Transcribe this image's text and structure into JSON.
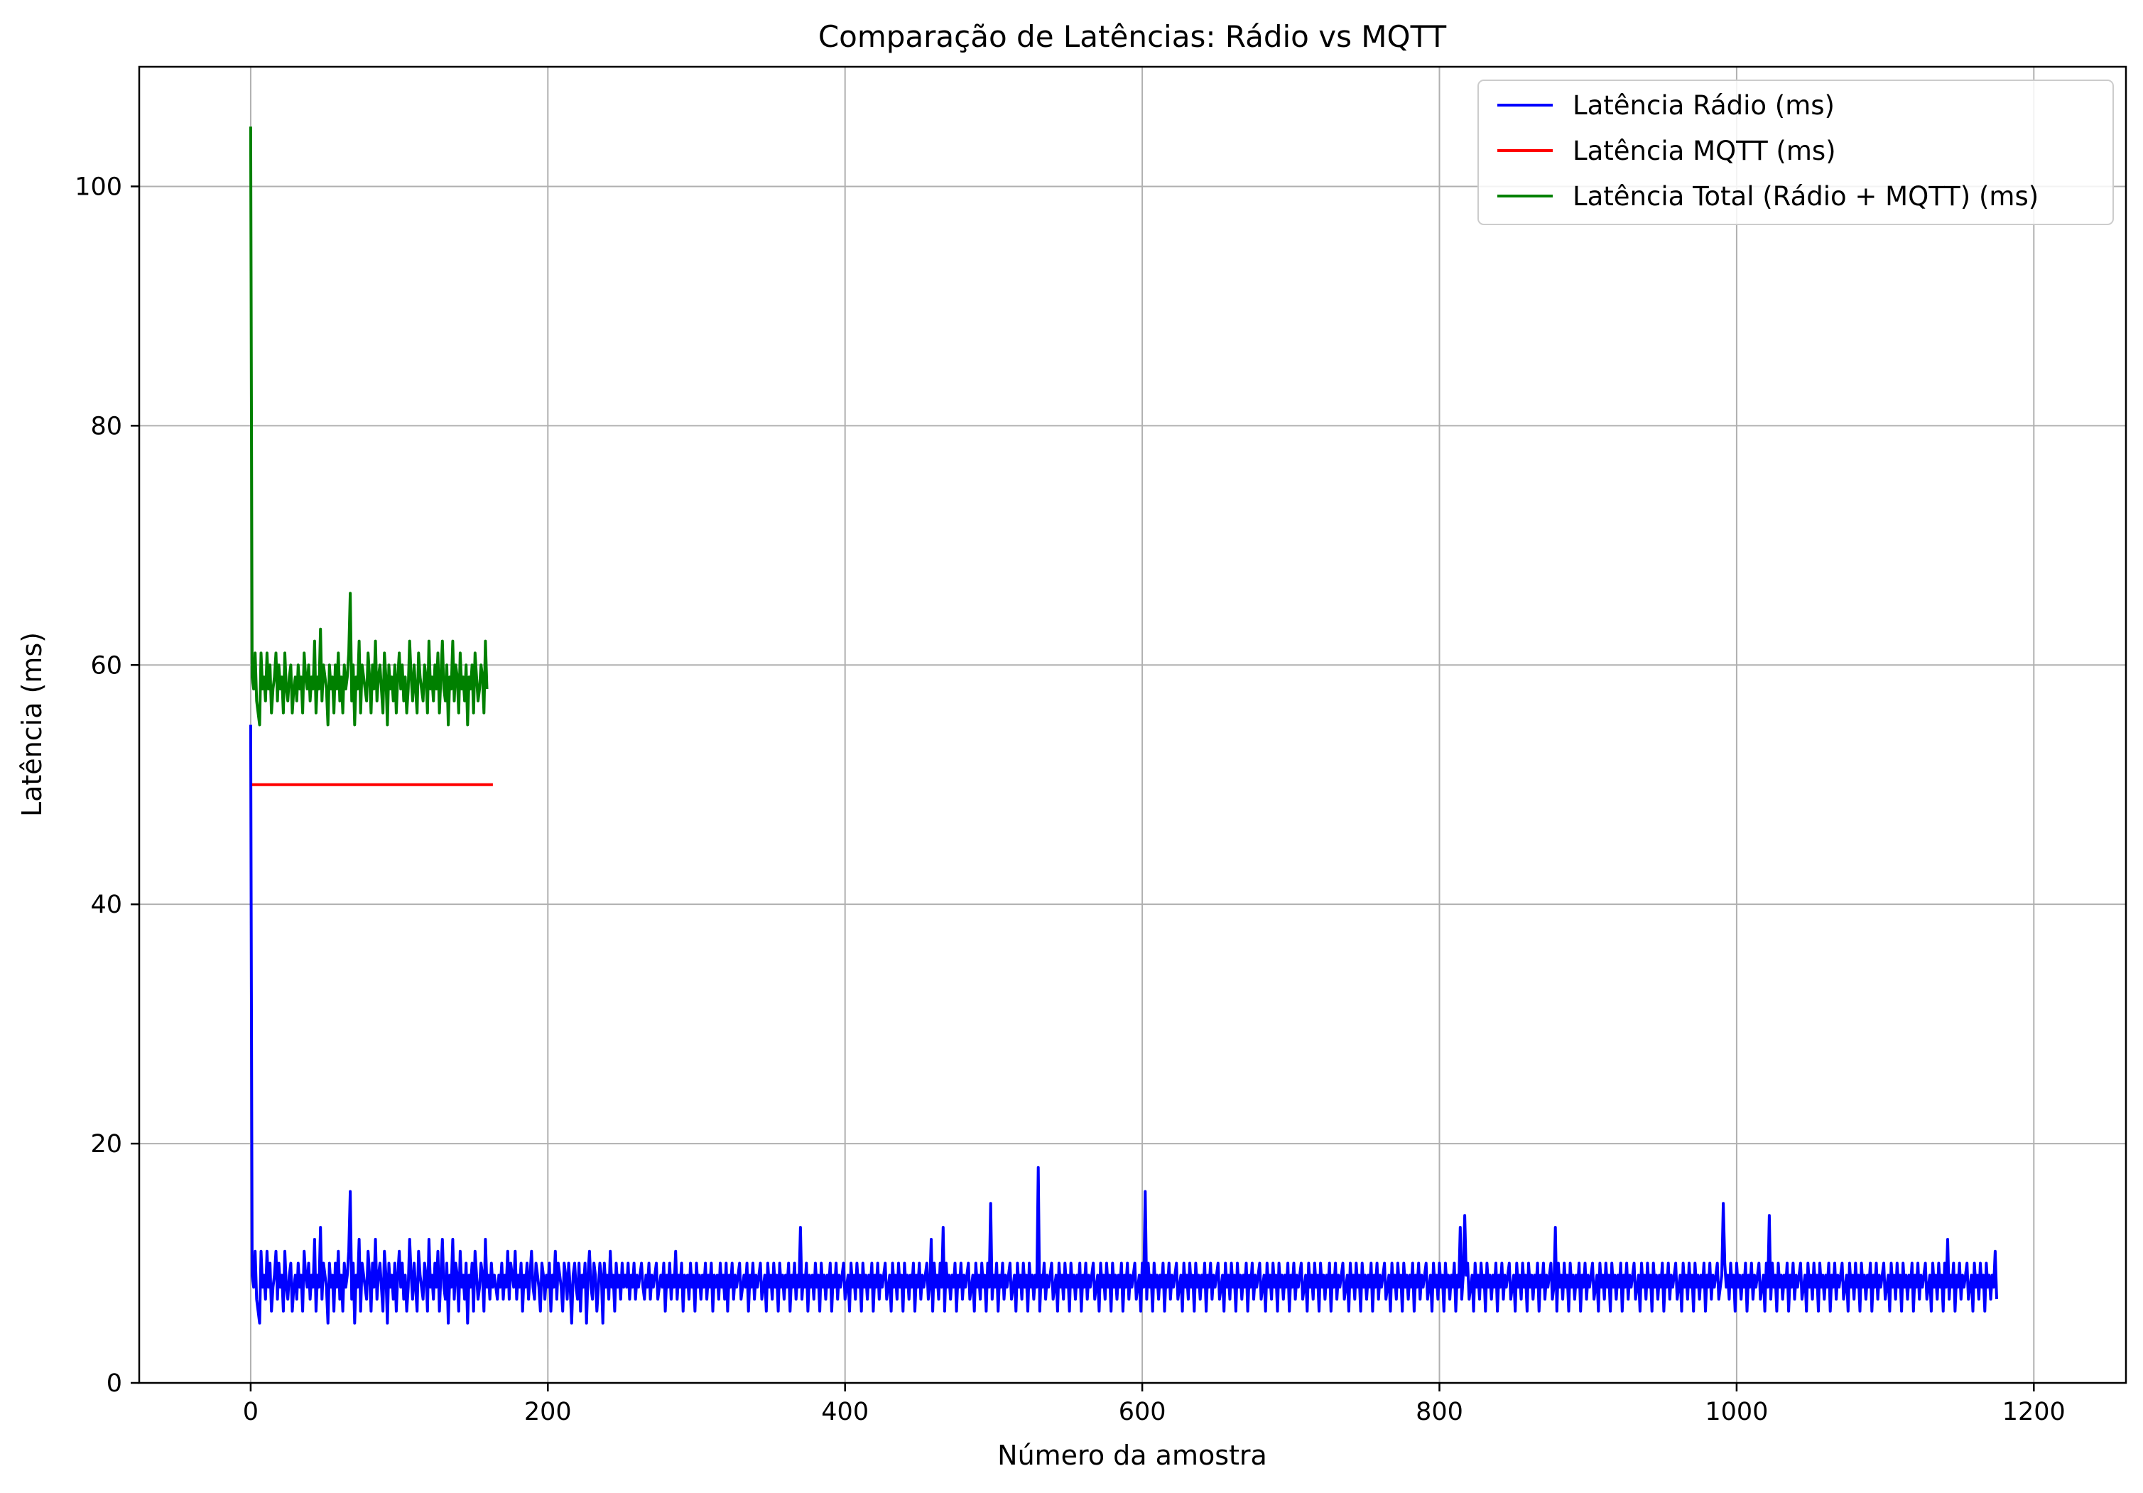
{
  "chart_data": {
    "type": "line",
    "title": "Comparação de Latências: Rádio vs MQTT",
    "xlabel": "Número da amostra",
    "ylabel": "Latência (ms)",
    "xlim": [
      -75,
      1262
    ],
    "ylim": [
      0,
      110
    ],
    "xticks": [
      0,
      200,
      400,
      600,
      800,
      1000,
      1200
    ],
    "yticks": [
      0,
      20,
      40,
      60,
      80,
      100
    ],
    "grid": true,
    "legend_position": "top-right",
    "series": [
      {
        "name": "Latência Rádio (ms)",
        "color": "#0000ff",
        "x_start": 0,
        "values": [
          55,
          9,
          8,
          11,
          7,
          6,
          5,
          11,
          8,
          9,
          7,
          11,
          8,
          10,
          6,
          8,
          9,
          11,
          7,
          10,
          8,
          9,
          6,
          11,
          8,
          7,
          9,
          10,
          6,
          8,
          9,
          7,
          10,
          8,
          9,
          6,
          11,
          9,
          8,
          10,
          7,
          9,
          8,
          12,
          6,
          9,
          8,
          13,
          7,
          10,
          9,
          8,
          5,
          10,
          8,
          9,
          6,
          10,
          8,
          11,
          7,
          9,
          6,
          10,
          8,
          9,
          11,
          16,
          7,
          10,
          5,
          9,
          8,
          12,
          6,
          10,
          9,
          8,
          7,
          11,
          9,
          6,
          10,
          8,
          12,
          7,
          9,
          10,
          8,
          6,
          11,
          9,
          5,
          10,
          8,
          9,
          7,
          10,
          6,
          9,
          11,
          8,
          10,
          7,
          9,
          6,
          8,
          12,
          9,
          7,
          10,
          8,
          6,
          11,
          9,
          8,
          7,
          10,
          9,
          6,
          12,
          8,
          9,
          7,
          10,
          8,
          11,
          6,
          9,
          12,
          8,
          7,
          10,
          5,
          9,
          8,
          12,
          7,
          10,
          9,
          6,
          11,
          8,
          9,
          7,
          10,
          5,
          9,
          8,
          10,
          6,
          11,
          9,
          7,
          8,
          10,
          9,
          6,
          12,
          8,
          9,
          7,
          10,
          8,
          9,
          8,
          7,
          9,
          8,
          10,
          7,
          9,
          8,
          11,
          7,
          10,
          9,
          8,
          11,
          7,
          9,
          8,
          10,
          6,
          9,
          8,
          10,
          7,
          9,
          11,
          8,
          7,
          10,
          9,
          8,
          6,
          10,
          9,
          7,
          9,
          8,
          10,
          6,
          9,
          8,
          11,
          7,
          10,
          9,
          8,
          6,
          10,
          9,
          7,
          10,
          8,
          5,
          9,
          10,
          8,
          7,
          10,
          6,
          9,
          8,
          10,
          5,
          9,
          11,
          8,
          7,
          10,
          9,
          6,
          8,
          10,
          9,
          5,
          10,
          8,
          9,
          7,
          11,
          8,
          9,
          6,
          10,
          8,
          9,
          7,
          10,
          8,
          9,
          8,
          10,
          7,
          9,
          8,
          10,
          7,
          9,
          8,
          9,
          10,
          8,
          7,
          9,
          8,
          10,
          7,
          9,
          8,
          9,
          10,
          7,
          8,
          9,
          8,
          10,
          6,
          9,
          8,
          10,
          7,
          9,
          8,
          11,
          7,
          9,
          8,
          10,
          6,
          9,
          8,
          9,
          7,
          10,
          8,
          9,
          6,
          10,
          8,
          9,
          7,
          9,
          8,
          10,
          7,
          9,
          8,
          10,
          6,
          9,
          8,
          9,
          7,
          10,
          8,
          9,
          7,
          10,
          6,
          9,
          8,
          10,
          7,
          9,
          8,
          9,
          10,
          7,
          8,
          9,
          8,
          10,
          6,
          9,
          8,
          10,
          7,
          9,
          8,
          9,
          10,
          7,
          8,
          9,
          6,
          10,
          8,
          9,
          7,
          10,
          8,
          9,
          6,
          10,
          8,
          9,
          7,
          9,
          8,
          10,
          6,
          9,
          8,
          10,
          7,
          9,
          8,
          13,
          7,
          9,
          8,
          10,
          6,
          9,
          8,
          9,
          7,
          10,
          8,
          9,
          6,
          10,
          8,
          9,
          7,
          9,
          8,
          10,
          6,
          9,
          8,
          10,
          7,
          9,
          8,
          9,
          10,
          7,
          8,
          9,
          6,
          10,
          8,
          9,
          7,
          10,
          8,
          9,
          6,
          10,
          8,
          9,
          7,
          9,
          8,
          10,
          6,
          9,
          8,
          10,
          7,
          9,
          8,
          9,
          10,
          7,
          8,
          9,
          6,
          10,
          8,
          9,
          7,
          10,
          8,
          9,
          6,
          10,
          8,
          9,
          7,
          9,
          8,
          10,
          6,
          9,
          8,
          10,
          7,
          9,
          8,
          9,
          10,
          7,
          8,
          12,
          6,
          10,
          8,
          9,
          7,
          10,
          8,
          13,
          6,
          10,
          8,
          9,
          7,
          9,
          8,
          10,
          6,
          9,
          8,
          10,
          7,
          9,
          8,
          9,
          10,
          7,
          8,
          9,
          6,
          10,
          8,
          9,
          7,
          10,
          8,
          9,
          6,
          10,
          8,
          15,
          7,
          9,
          8,
          10,
          6,
          9,
          8,
          10,
          7,
          9,
          8,
          9,
          10,
          7,
          8,
          9,
          6,
          10,
          8,
          9,
          7,
          10,
          8,
          9,
          6,
          10,
          8,
          9,
          7,
          9,
          8,
          18,
          6,
          9,
          8,
          10,
          7,
          9,
          8,
          9,
          10,
          7,
          8,
          9,
          6,
          10,
          8,
          9,
          7,
          10,
          8,
          9,
          6,
          10,
          8,
          9,
          7,
          9,
          8,
          10,
          6,
          9,
          8,
          10,
          7,
          9,
          8,
          9,
          10,
          7,
          8,
          9,
          6,
          10,
          8,
          9,
          7,
          10,
          8,
          9,
          6,
          10,
          8,
          9,
          7,
          9,
          8,
          10,
          6,
          9,
          8,
          10,
          7,
          9,
          8,
          9,
          10,
          7,
          8,
          9,
          6,
          10,
          8,
          16,
          7,
          10,
          8,
          9,
          6,
          10,
          8,
          9,
          7,
          9,
          8,
          10,
          6,
          9,
          8,
          10,
          7,
          9,
          8,
          9,
          10,
          7,
          8,
          9,
          6,
          10,
          8,
          9,
          7,
          10,
          8,
          9,
          6,
          10,
          8,
          9,
          7,
          9,
          8,
          10,
          6,
          9,
          8,
          10,
          7,
          9,
          8,
          9,
          10,
          7,
          8,
          9,
          6,
          10,
          8,
          9,
          7,
          10,
          8,
          9,
          6,
          10,
          8,
          9,
          7,
          9,
          8,
          10,
          6,
          9,
          8,
          10,
          7,
          9,
          8,
          9,
          10,
          7,
          8,
          9,
          6,
          10,
          8,
          9,
          7,
          10,
          8,
          9,
          6,
          10,
          8,
          9,
          7,
          9,
          8,
          10,
          6,
          9,
          8,
          10,
          7,
          9,
          8,
          9,
          10,
          7,
          8,
          9,
          6,
          10,
          8,
          9,
          7,
          10,
          8,
          9,
          6,
          10,
          8,
          9,
          7,
          9,
          8,
          10,
          6,
          9,
          8,
          10,
          7,
          9,
          8,
          9,
          10,
          7,
          8,
          9,
          6,
          10,
          8,
          9,
          7,
          10,
          8,
          9,
          6,
          10,
          8,
          9,
          7,
          9,
          8,
          10,
          6,
          9,
          8,
          10,
          7,
          9,
          8,
          9,
          10,
          7,
          8,
          9,
          6,
          10,
          8,
          9,
          7,
          10,
          8,
          9,
          6,
          10,
          8,
          9,
          7,
          9,
          8,
          10,
          6,
          9,
          8,
          10,
          7,
          9,
          8,
          9,
          10,
          7,
          8,
          9,
          6,
          10,
          8,
          9,
          7,
          10,
          8,
          9,
          6,
          10,
          8,
          9,
          7,
          9,
          8,
          10,
          6,
          9,
          8,
          13,
          7,
          9,
          14,
          9,
          10,
          7,
          8,
          9,
          6,
          10,
          8,
          9,
          7,
          10,
          8,
          9,
          6,
          10,
          8,
          9,
          7,
          9,
          8,
          10,
          6,
          9,
          8,
          10,
          7,
          9,
          8,
          9,
          10,
          7,
          8,
          9,
          6,
          10,
          8,
          9,
          7,
          10,
          8,
          9,
          6,
          10,
          8,
          9,
          7,
          9,
          8,
          10,
          6,
          9,
          8,
          10,
          7,
          9,
          8,
          9,
          10,
          7,
          8,
          13,
          6,
          10,
          8,
          9,
          7,
          10,
          8,
          9,
          6,
          10,
          8,
          9,
          7,
          9,
          8,
          10,
          6,
          9,
          8,
          10,
          7,
          9,
          8,
          9,
          10,
          7,
          8,
          9,
          6,
          10,
          8,
          9,
          7,
          10,
          8,
          9,
          6,
          10,
          8,
          9,
          7,
          9,
          8,
          10,
          6,
          9,
          8,
          10,
          7,
          9,
          8,
          9,
          10,
          7,
          8,
          9,
          6,
          10,
          8,
          9,
          7,
          10,
          8,
          9,
          6,
          10,
          8,
          9,
          7,
          9,
          8,
          10,
          6,
          9,
          8,
          10,
          7,
          9,
          8,
          9,
          10,
          7,
          8,
          9,
          6,
          10,
          8,
          9,
          7,
          10,
          8,
          9,
          6,
          10,
          8,
          9,
          7,
          9,
          8,
          10,
          6,
          9,
          8,
          10,
          7,
          9,
          8,
          9,
          10,
          7,
          8,
          9,
          15,
          10,
          8,
          9,
          7,
          10,
          8,
          9,
          6,
          10,
          8,
          9,
          7,
          9,
          8,
          10,
          6,
          9,
          8,
          10,
          7,
          9,
          8,
          9,
          10,
          7,
          8,
          9,
          6,
          10,
          8,
          14,
          7,
          10,
          8,
          9,
          6,
          10,
          8,
          9,
          7,
          9,
          8,
          10,
          6,
          9,
          8,
          10,
          7,
          9,
          8,
          9,
          10,
          7,
          8,
          9,
          6,
          10,
          8,
          9,
          7,
          10,
          8,
          9,
          6,
          10,
          8,
          9,
          7,
          9,
          8,
          10,
          6,
          9,
          8,
          10,
          7,
          9,
          8,
          9,
          10,
          7,
          8,
          9,
          6,
          10,
          8,
          9,
          7,
          10,
          8,
          9,
          6,
          10,
          8,
          9,
          7,
          9,
          8,
          10,
          6,
          9,
          8,
          10,
          7,
          9,
          8,
          9,
          10,
          7,
          8,
          9,
          6,
          10,
          8,
          9,
          7,
          10,
          8,
          9,
          6,
          10,
          8,
          9,
          7,
          9,
          8,
          10,
          6,
          9,
          8,
          10,
          7,
          9,
          8,
          9,
          10,
          7,
          8,
          9,
          6,
          10,
          8,
          9,
          7,
          10,
          8,
          9,
          6,
          10,
          8,
          12,
          7,
          9,
          8,
          10,
          6,
          9,
          8,
          10,
          7,
          9,
          8,
          9,
          10,
          7,
          8,
          9,
          6,
          10,
          8,
          9,
          7,
          10,
          8,
          9,
          6,
          10,
          8,
          9,
          7,
          9,
          8,
          11,
          7
        ]
      },
      {
        "name": "Latência MQTT (ms)",
        "color": "#ff0000",
        "x": [
          1,
          163
        ],
        "values": [
          50,
          50
        ]
      },
      {
        "name": "Latência Total (Rádio + MQTT) (ms)",
        "color": "#008000",
        "x_start": 0,
        "values": [
          105,
          59,
          58,
          61,
          57,
          56,
          55,
          61,
          58,
          59,
          57,
          61,
          58,
          60,
          56,
          58,
          59,
          61,
          57,
          60,
          58,
          59,
          56,
          61,
          58,
          57,
          59,
          60,
          56,
          58,
          59,
          57,
          60,
          58,
          59,
          56,
          61,
          59,
          58,
          60,
          57,
          59,
          58,
          62,
          56,
          59,
          58,
          63,
          57,
          60,
          59,
          58,
          55,
          60,
          58,
          59,
          56,
          60,
          58,
          61,
          57,
          59,
          56,
          60,
          58,
          59,
          61,
          66,
          57,
          60,
          55,
          59,
          58,
          62,
          56,
          60,
          59,
          58,
          57,
          61,
          59,
          56,
          60,
          58,
          62,
          57,
          59,
          60,
          58,
          56,
          61,
          59,
          55,
          60,
          58,
          59,
          57,
          60,
          56,
          59,
          61,
          58,
          60,
          57,
          59,
          56,
          58,
          62,
          59,
          57,
          60,
          58,
          56,
          61,
          59,
          58,
          57,
          60,
          59,
          56,
          62,
          58,
          59,
          57,
          60,
          58,
          61,
          56,
          59,
          62,
          58,
          57,
          60,
          55,
          59,
          58,
          62,
          57,
          60,
          59,
          56,
          61,
          58,
          59,
          57,
          60,
          55,
          59,
          58,
          60,
          56,
          61,
          59,
          57,
          58,
          60,
          59,
          56,
          62,
          58
        ]
      }
    ]
  }
}
